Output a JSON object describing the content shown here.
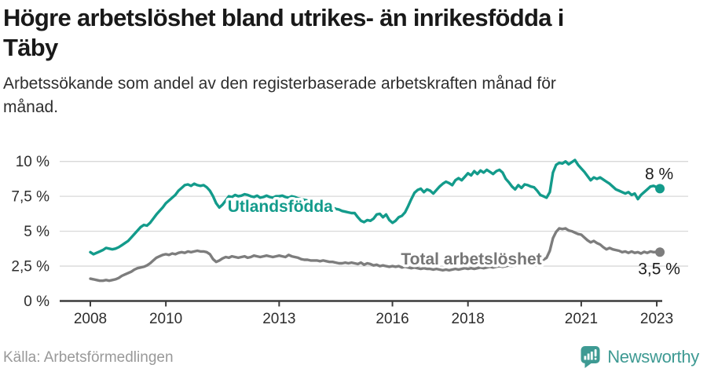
{
  "header": {
    "title_line1": "Högre arbetslöshet bland utrikes- än inrikesfödda i",
    "title_line2": "Täby",
    "subtitle_line1": "Arbetssökande som andel av den registerbaserade arbetskraften månad för",
    "subtitle_line2": "månad."
  },
  "chart_data": {
    "type": "line",
    "unit": "%",
    "frequency": "monthly",
    "x_start_year": 2008,
    "x_end": "2023-02",
    "ylim": [
      0,
      10.5
    ],
    "grid": "horizontal",
    "colors": {
      "teal": "#139b8b",
      "gray_line": "#7d7d7d",
      "gray_label": "#757575",
      "gridline": "#d8d8d8",
      "axis": "#3c3c3c"
    },
    "yticks": [
      {
        "value": 10,
        "label": "10 %"
      },
      {
        "value": 7.5,
        "label": "7,5 %"
      },
      {
        "value": 5,
        "label": "5 %"
      },
      {
        "value": 2.5,
        "label": "2,5 %"
      },
      {
        "value": 0,
        "label": "0 %"
      }
    ],
    "xticks": [
      {
        "value": 2008,
        "label": "2008"
      },
      {
        "value": 2010,
        "label": "2010"
      },
      {
        "value": 2013,
        "label": "2013"
      },
      {
        "value": 2016,
        "label": "2016"
      },
      {
        "value": 2018,
        "label": "2018"
      },
      {
        "value": 2021,
        "label": "2021"
      },
      {
        "value": 2023,
        "label": "2023"
      }
    ],
    "series": [
      {
        "name": "Utlandsfödda",
        "color": "#139b8b",
        "label_color": "#139b8b",
        "inline_label": {
          "text": "Utlandsfödda",
          "x": 2013.03,
          "y": 6.38
        },
        "end_label": "8 %",
        "end_label_pos": "above",
        "values": [
          3.5,
          3.35,
          3.45,
          3.55,
          3.65,
          3.8,
          3.75,
          3.7,
          3.75,
          3.85,
          4.0,
          4.15,
          4.3,
          4.55,
          4.8,
          5.05,
          5.3,
          5.45,
          5.4,
          5.6,
          5.9,
          6.2,
          6.45,
          6.7,
          7.0,
          7.2,
          7.4,
          7.6,
          7.9,
          8.1,
          8.3,
          8.35,
          8.25,
          8.4,
          8.3,
          8.25,
          8.3,
          8.15,
          7.9,
          7.5,
          7.0,
          6.7,
          6.9,
          7.2,
          7.5,
          7.45,
          7.6,
          7.5,
          7.55,
          7.65,
          7.6,
          7.5,
          7.45,
          7.55,
          7.4,
          7.45,
          7.55,
          7.45,
          7.4,
          7.5,
          7.5,
          7.55,
          7.45,
          7.4,
          7.5,
          7.45,
          7.35,
          7.3,
          7.25,
          7.2,
          7.15,
          7.1,
          7.05,
          7.0,
          6.9,
          6.85,
          6.75,
          6.7,
          6.6,
          6.55,
          6.45,
          6.4,
          6.35,
          6.3,
          6.3,
          6.0,
          5.75,
          5.65,
          5.8,
          5.75,
          5.9,
          6.2,
          6.25,
          6.0,
          6.2,
          5.8,
          5.6,
          5.75,
          6.0,
          6.1,
          6.35,
          6.8,
          7.3,
          7.75,
          7.95,
          8.05,
          7.8,
          8.0,
          7.9,
          7.7,
          7.95,
          8.2,
          8.4,
          8.55,
          8.45,
          8.3,
          8.65,
          8.8,
          8.65,
          8.9,
          9.15,
          9.0,
          9.3,
          9.1,
          9.35,
          9.2,
          9.4,
          9.25,
          9.1,
          9.3,
          9.4,
          9.2,
          8.75,
          8.5,
          8.2,
          8.0,
          8.3,
          8.1,
          8.35,
          8.3,
          8.2,
          8.15,
          7.9,
          7.6,
          7.5,
          7.4,
          7.8,
          9.2,
          9.75,
          9.9,
          9.85,
          10.0,
          9.8,
          9.95,
          10.1,
          9.75,
          9.5,
          9.25,
          8.95,
          8.65,
          8.85,
          8.75,
          8.85,
          8.7,
          8.55,
          8.4,
          8.2,
          8.0,
          7.9,
          7.8,
          7.7,
          7.8,
          7.6,
          7.7,
          7.3,
          7.6,
          7.8,
          8.0,
          8.2,
          8.25,
          8.15,
          8.05
        ]
      },
      {
        "name": "Total arbetslöshet",
        "color": "#7d7d7d",
        "label_color": "#757575",
        "inline_label": {
          "text": "Total arbetslöshet",
          "x": 2018.09,
          "y": 2.61
        },
        "end_label": "3,5 %",
        "end_label_pos": "below",
        "values": [
          1.6,
          1.55,
          1.5,
          1.45,
          1.45,
          1.5,
          1.45,
          1.5,
          1.55,
          1.65,
          1.8,
          1.9,
          2.0,
          2.1,
          2.25,
          2.35,
          2.4,
          2.45,
          2.55,
          2.7,
          2.9,
          3.1,
          3.2,
          3.3,
          3.35,
          3.3,
          3.4,
          3.35,
          3.45,
          3.5,
          3.45,
          3.55,
          3.5,
          3.55,
          3.6,
          3.55,
          3.55,
          3.5,
          3.35,
          3.0,
          2.8,
          2.9,
          3.05,
          3.15,
          3.1,
          3.2,
          3.15,
          3.1,
          3.15,
          3.2,
          3.1,
          3.15,
          3.25,
          3.2,
          3.15,
          3.2,
          3.25,
          3.2,
          3.15,
          3.2,
          3.25,
          3.2,
          3.15,
          3.3,
          3.2,
          3.15,
          3.1,
          3.0,
          2.95,
          2.95,
          2.9,
          2.9,
          2.9,
          2.85,
          2.9,
          2.85,
          2.8,
          2.8,
          2.75,
          2.7,
          2.7,
          2.75,
          2.7,
          2.75,
          2.7,
          2.65,
          2.75,
          2.6,
          2.7,
          2.65,
          2.55,
          2.6,
          2.5,
          2.55,
          2.5,
          2.45,
          2.5,
          2.45,
          2.5,
          2.4,
          2.45,
          2.4,
          2.35,
          2.4,
          2.35,
          2.3,
          2.35,
          2.3,
          2.3,
          2.25,
          2.3,
          2.25,
          2.2,
          2.25,
          2.2,
          2.25,
          2.3,
          2.25,
          2.3,
          2.35,
          2.3,
          2.35,
          2.3,
          2.35,
          2.4,
          2.35,
          2.4,
          2.45,
          2.4,
          2.45,
          2.5,
          2.45,
          2.5,
          2.55,
          2.5,
          2.55,
          2.6,
          2.65,
          2.6,
          2.65,
          2.7,
          2.75,
          2.8,
          2.85,
          2.95,
          3.1,
          3.6,
          4.5,
          4.95,
          5.2,
          5.15,
          5.2,
          5.05,
          5.0,
          4.9,
          4.8,
          4.75,
          4.55,
          4.35,
          4.2,
          4.3,
          4.15,
          4.05,
          3.85,
          3.7,
          3.8,
          3.7,
          3.65,
          3.6,
          3.5,
          3.55,
          3.45,
          3.55,
          3.45,
          3.5,
          3.4,
          3.52,
          3.45,
          3.55,
          3.5,
          3.52,
          3.5
        ]
      }
    ]
  },
  "footer": {
    "source": "Källa: Arbetsförmedlingen",
    "brand": "Newsworthy"
  }
}
